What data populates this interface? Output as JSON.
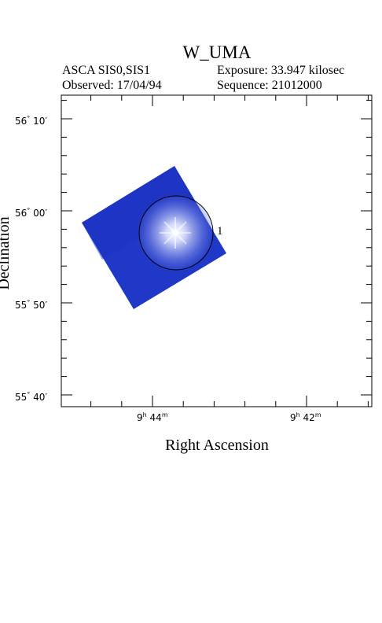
{
  "header": {
    "title": "W_UMA",
    "instrument": "ASCA SIS0,SIS1",
    "exposure": "Exposure: 33.947 kilosec",
    "observed": "Observed: 17/04/94",
    "sequence": "Sequence: 21012000"
  },
  "axes": {
    "xlabel": "Right Ascension",
    "ylabel": "Declination",
    "x_ticks": [
      {
        "h": "9",
        "m": "44",
        "sup_h": "h",
        "sup_m": "m"
      },
      {
        "h": "9",
        "m": "42",
        "sup_h": "h",
        "sup_m": "m"
      }
    ],
    "y_ticks": [
      {
        "deg": "56",
        "min": "10"
      },
      {
        "deg": "56",
        "min": "00"
      },
      {
        "deg": "55",
        "min": "50"
      },
      {
        "deg": "55",
        "min": "40"
      }
    ]
  },
  "image": {
    "source_marker": "1",
    "field_color": "#1f38c8",
    "source_color": "#ffffff"
  }
}
